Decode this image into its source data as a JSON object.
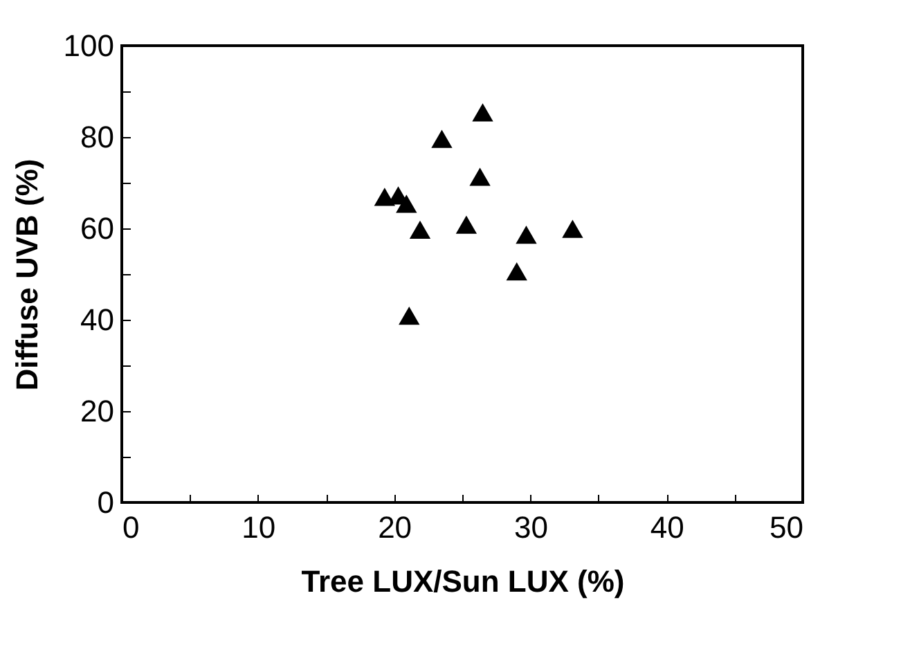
{
  "chart_data": {
    "type": "scatter",
    "xlabel": "Tree LUX/Sun LUX (%)",
    "ylabel": "Diffuse UVB (%)",
    "x": [
      19.3,
      20.3,
      20.9,
      21.9,
      21.1,
      23.5,
      26.5,
      26.3,
      25.3,
      29.7,
      29.0,
      33.1
    ],
    "series": [
      {
        "color": "#000000",
        "values": [
          66.9,
          67.2,
          65.4,
          59.7,
          40.9,
          79.6,
          85.4,
          71.3,
          60.8,
          58.6,
          50.6,
          59.9
        ]
      }
    ],
    "xlim": [
      0,
      50
    ],
    "ylim": [
      0,
      100
    ],
    "xticks": [
      0,
      {
        "value": 5,
        "label": null
      },
      10,
      {
        "value": 15,
        "label": null
      },
      20,
      {
        "value": 25,
        "label": null
      },
      30,
      {
        "value": 35,
        "label": null
      },
      40,
      {
        "value": 45,
        "label": null
      },
      50
    ],
    "yticks": [
      0,
      {
        "value": 10,
        "label": null
      },
      20,
      {
        "value": 30,
        "label": null
      },
      40,
      {
        "value": 50,
        "label": null
      },
      60,
      {
        "value": 70,
        "label": null
      },
      80,
      {
        "value": 90,
        "label": null
      },
      100
    ],
    "grid": false,
    "legend": false,
    "marker": "triangle"
  }
}
